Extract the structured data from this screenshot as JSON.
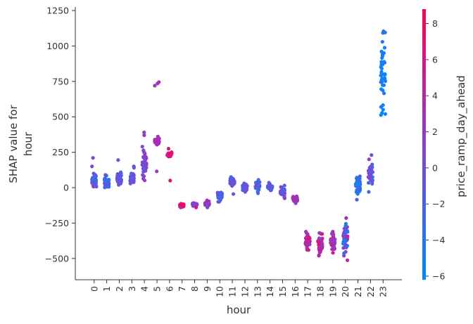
{
  "chart_data": {
    "type": "scatter",
    "kind": "shap-dependence",
    "xlabel": "hour",
    "ylabel_lines": [
      "SHAP value for",
      "hour"
    ],
    "colorbar_label": "price_ramp_day_ahead",
    "categories": [
      "0",
      "1",
      "2",
      "3",
      "4",
      "5",
      "6",
      "7",
      "8",
      "9",
      "10",
      "11",
      "12",
      "13",
      "14",
      "15",
      "16",
      "17",
      "18",
      "19",
      "20",
      "21",
      "22",
      "23"
    ],
    "y_ticks": [
      1250,
      1000,
      750,
      500,
      250,
      0,
      -250,
      -500
    ],
    "y_tick_labels": [
      "1250",
      "1000",
      "750",
      "500",
      "250",
      "0",
      "−250",
      "−500"
    ],
    "ylim": [
      -650,
      1275
    ],
    "xlim": [
      -1.5,
      24.5
    ],
    "color_ticks": [
      8,
      6,
      4,
      2,
      0,
      -2,
      -4,
      -6
    ],
    "color_tick_labels": [
      "8",
      "6",
      "4",
      "2",
      "0",
      "−2",
      "−4",
      "−6"
    ],
    "color_range": [
      -6.2,
      8.8
    ],
    "colors": {
      "low": "#008afb",
      "mid": "#8a40d0",
      "high": "#ff0052",
      "axis": "#333333"
    },
    "groups": [
      {
        "hour": 0,
        "center": 50,
        "spread": 45,
        "extra": [
          150,
          210,
          100
        ],
        "color_range": [
          -4,
          1
        ]
      },
      {
        "hour": 1,
        "center": 35,
        "spread": 35,
        "extra": [
          85,
          90
        ],
        "color_range": [
          -5,
          0
        ]
      },
      {
        "hour": 2,
        "center": 55,
        "spread": 40,
        "extra": [
          195,
          100
        ],
        "color_range": [
          -3,
          1
        ]
      },
      {
        "hour": 3,
        "center": 65,
        "spread": 45,
        "extra": [
          150,
          140
        ],
        "color_range": [
          -2,
          1.5
        ]
      },
      {
        "hour": 4,
        "center": 150,
        "spread": 90,
        "extra": [
          390,
          370,
          290
        ],
        "color_range": [
          -0.5,
          2.5
        ]
      },
      {
        "hour": 5,
        "center": 330,
        "spread": 25,
        "extra": [
          735,
          720,
          745,
          115
        ],
        "color_range": [
          1.5,
          4
        ]
      },
      {
        "hour": 6,
        "center": 235,
        "spread": 15,
        "extra": [
          275,
          50
        ],
        "color_range": [
          4,
          8
        ]
      },
      {
        "hour": 7,
        "center": -125,
        "spread": 12,
        "extra": [
          -140
        ],
        "color_range": [
          4,
          8
        ]
      },
      {
        "hour": 8,
        "center": -120,
        "spread": 12,
        "extra": [
          -140
        ],
        "color_range": [
          0,
          6
        ]
      },
      {
        "hour": 9,
        "center": -115,
        "spread": 15,
        "extra": [
          -90,
          -140
        ],
        "color_range": [
          -2,
          6
        ]
      },
      {
        "hour": 10,
        "center": -60,
        "spread": 30,
        "extra": [
          -100
        ],
        "color_range": [
          -4,
          0
        ]
      },
      {
        "hour": 11,
        "center": 40,
        "spread": 25,
        "extra": [
          75,
          -45
        ],
        "color_range": [
          -3,
          1
        ]
      },
      {
        "hour": 12,
        "center": 0,
        "spread": 25,
        "extra": [
          -30
        ],
        "color_range": [
          -3,
          1
        ]
      },
      {
        "hour": 13,
        "center": 10,
        "spread": 35,
        "extra": [
          55,
          -40
        ],
        "color_range": [
          -4,
          1
        ]
      },
      {
        "hour": 14,
        "center": 0,
        "spread": 20,
        "extra": [
          35
        ],
        "color_range": [
          -3,
          0
        ]
      },
      {
        "hour": 15,
        "center": -30,
        "spread": 30,
        "extra": [
          15,
          -75
        ],
        "color_range": [
          -2,
          2
        ]
      },
      {
        "hour": 16,
        "center": -80,
        "spread": 20,
        "extra": [
          -110
        ],
        "color_range": [
          1,
          6
        ]
      },
      {
        "hour": 17,
        "center": -380,
        "spread": 60,
        "extra": [
          -320,
          -440
        ],
        "color_range": [
          2,
          7
        ]
      },
      {
        "hour": 18,
        "center": -400,
        "spread": 70,
        "extra": [
          -320,
          -480
        ],
        "color_range": [
          1,
          7
        ]
      },
      {
        "hour": 19,
        "center": -380,
        "spread": 60,
        "extra": [
          -330,
          -460
        ],
        "color_range": [
          0,
          6
        ]
      },
      {
        "hour": 20,
        "center": -360,
        "spread": 110,
        "extra": [
          -255,
          -480,
          -270
        ],
        "color_range": [
          -6,
          5
        ]
      },
      {
        "hour": 21,
        "center": 20,
        "spread": 55,
        "extra": [
          -85,
          80
        ],
        "color_range": [
          -6,
          -2
        ]
      },
      {
        "hour": 22,
        "center": 110,
        "spread": 90,
        "extra": [
          230,
          -30,
          200
        ],
        "color_range": [
          -4,
          3
        ]
      },
      {
        "hour": 23,
        "center": 820,
        "spread": 280,
        "extra": [
          1100,
          1095,
          520,
          570
        ],
        "color_range": [
          -6,
          -4
        ]
      }
    ]
  }
}
